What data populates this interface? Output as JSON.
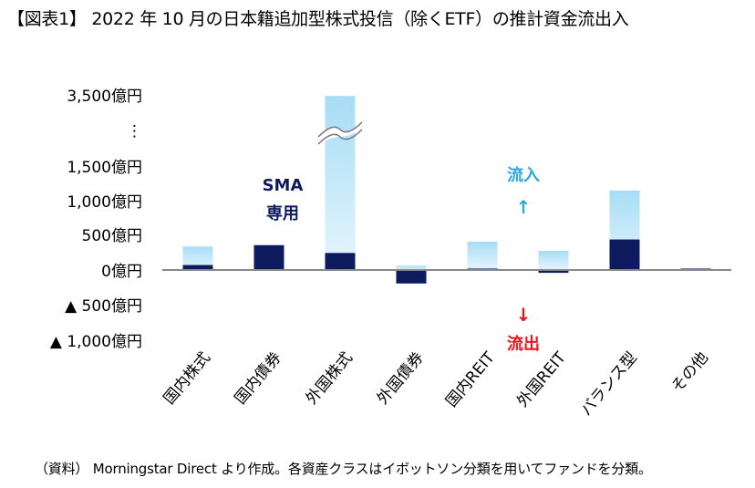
{
  "title": "【図表1】 2022 年 10 月の日本籍追加型株式投信（除くETF）の推計資金流出入",
  "source_note": "（資料） Morningstar Direct より作成。各資産クラスはイボットソン分類を用いてファンドを分類。",
  "annotations": {
    "sma_line1": "SMA",
    "sma_line2": "専用",
    "inflow": "流入",
    "outflow": "流出",
    "up_arrow": "↑",
    "down_arrow": "↓"
  },
  "colors": {
    "sma": "#0d1a5e",
    "total_top": "#a7dcf6",
    "total_bottom": "#e6f6fd",
    "inflow": "#2aa9e0",
    "outflow": "#e8141e",
    "axis": "#888888",
    "sma_label": "#0d1a5e"
  },
  "chart_data": {
    "type": "bar",
    "categories": [
      "国内株式",
      "国内債券",
      "外国株式",
      "外国債券",
      "国内REIT",
      "外国REIT",
      "バランス型",
      "その他"
    ],
    "series": [
      {
        "values": [
          330,
          350,
          3800,
          60,
          400,
          270,
          1120,
          20
        ]
      },
      {
        "values": [
          70,
          350,
          240,
          -190,
          20,
          -40,
          430,
          20
        ]
      }
    ],
    "y_ticks": [
      {
        "value": 3500,
        "label": "3,500億円"
      },
      {
        "value": null,
        "label": "⋮"
      },
      {
        "value": 1500,
        "label": "1,500億円"
      },
      {
        "value": 1000,
        "label": "1,000億円"
      },
      {
        "value": 500,
        "label": "500億円"
      },
      {
        "value": 0,
        "label": "0億円"
      },
      {
        "value": -500,
        "label": "▲ 500億円"
      },
      {
        "value": -1000,
        "label": "▲ 1,000億円"
      }
    ],
    "y_axis_break": true
  }
}
